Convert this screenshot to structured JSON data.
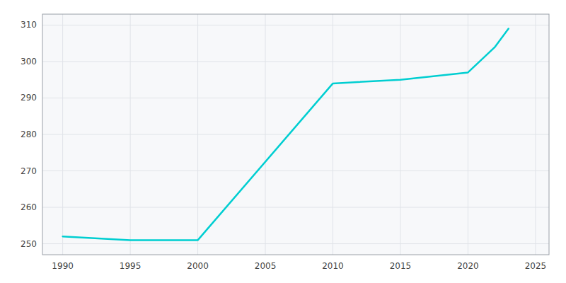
{
  "chart_data": {
    "type": "line",
    "x": [
      1990,
      1995,
      2000,
      2010,
      2015,
      2020,
      2022,
      2023
    ],
    "values": [
      252,
      251,
      251,
      294,
      295,
      297,
      304,
      309
    ],
    "color": "#00CED1",
    "xlim": [
      1988.5,
      2026
    ],
    "ylim": [
      247,
      313
    ],
    "xticks": [
      1990,
      1995,
      2000,
      2005,
      2010,
      2015,
      2020,
      2025
    ],
    "yticks": [
      250,
      260,
      270,
      280,
      290,
      300,
      310
    ],
    "grid": true
  }
}
